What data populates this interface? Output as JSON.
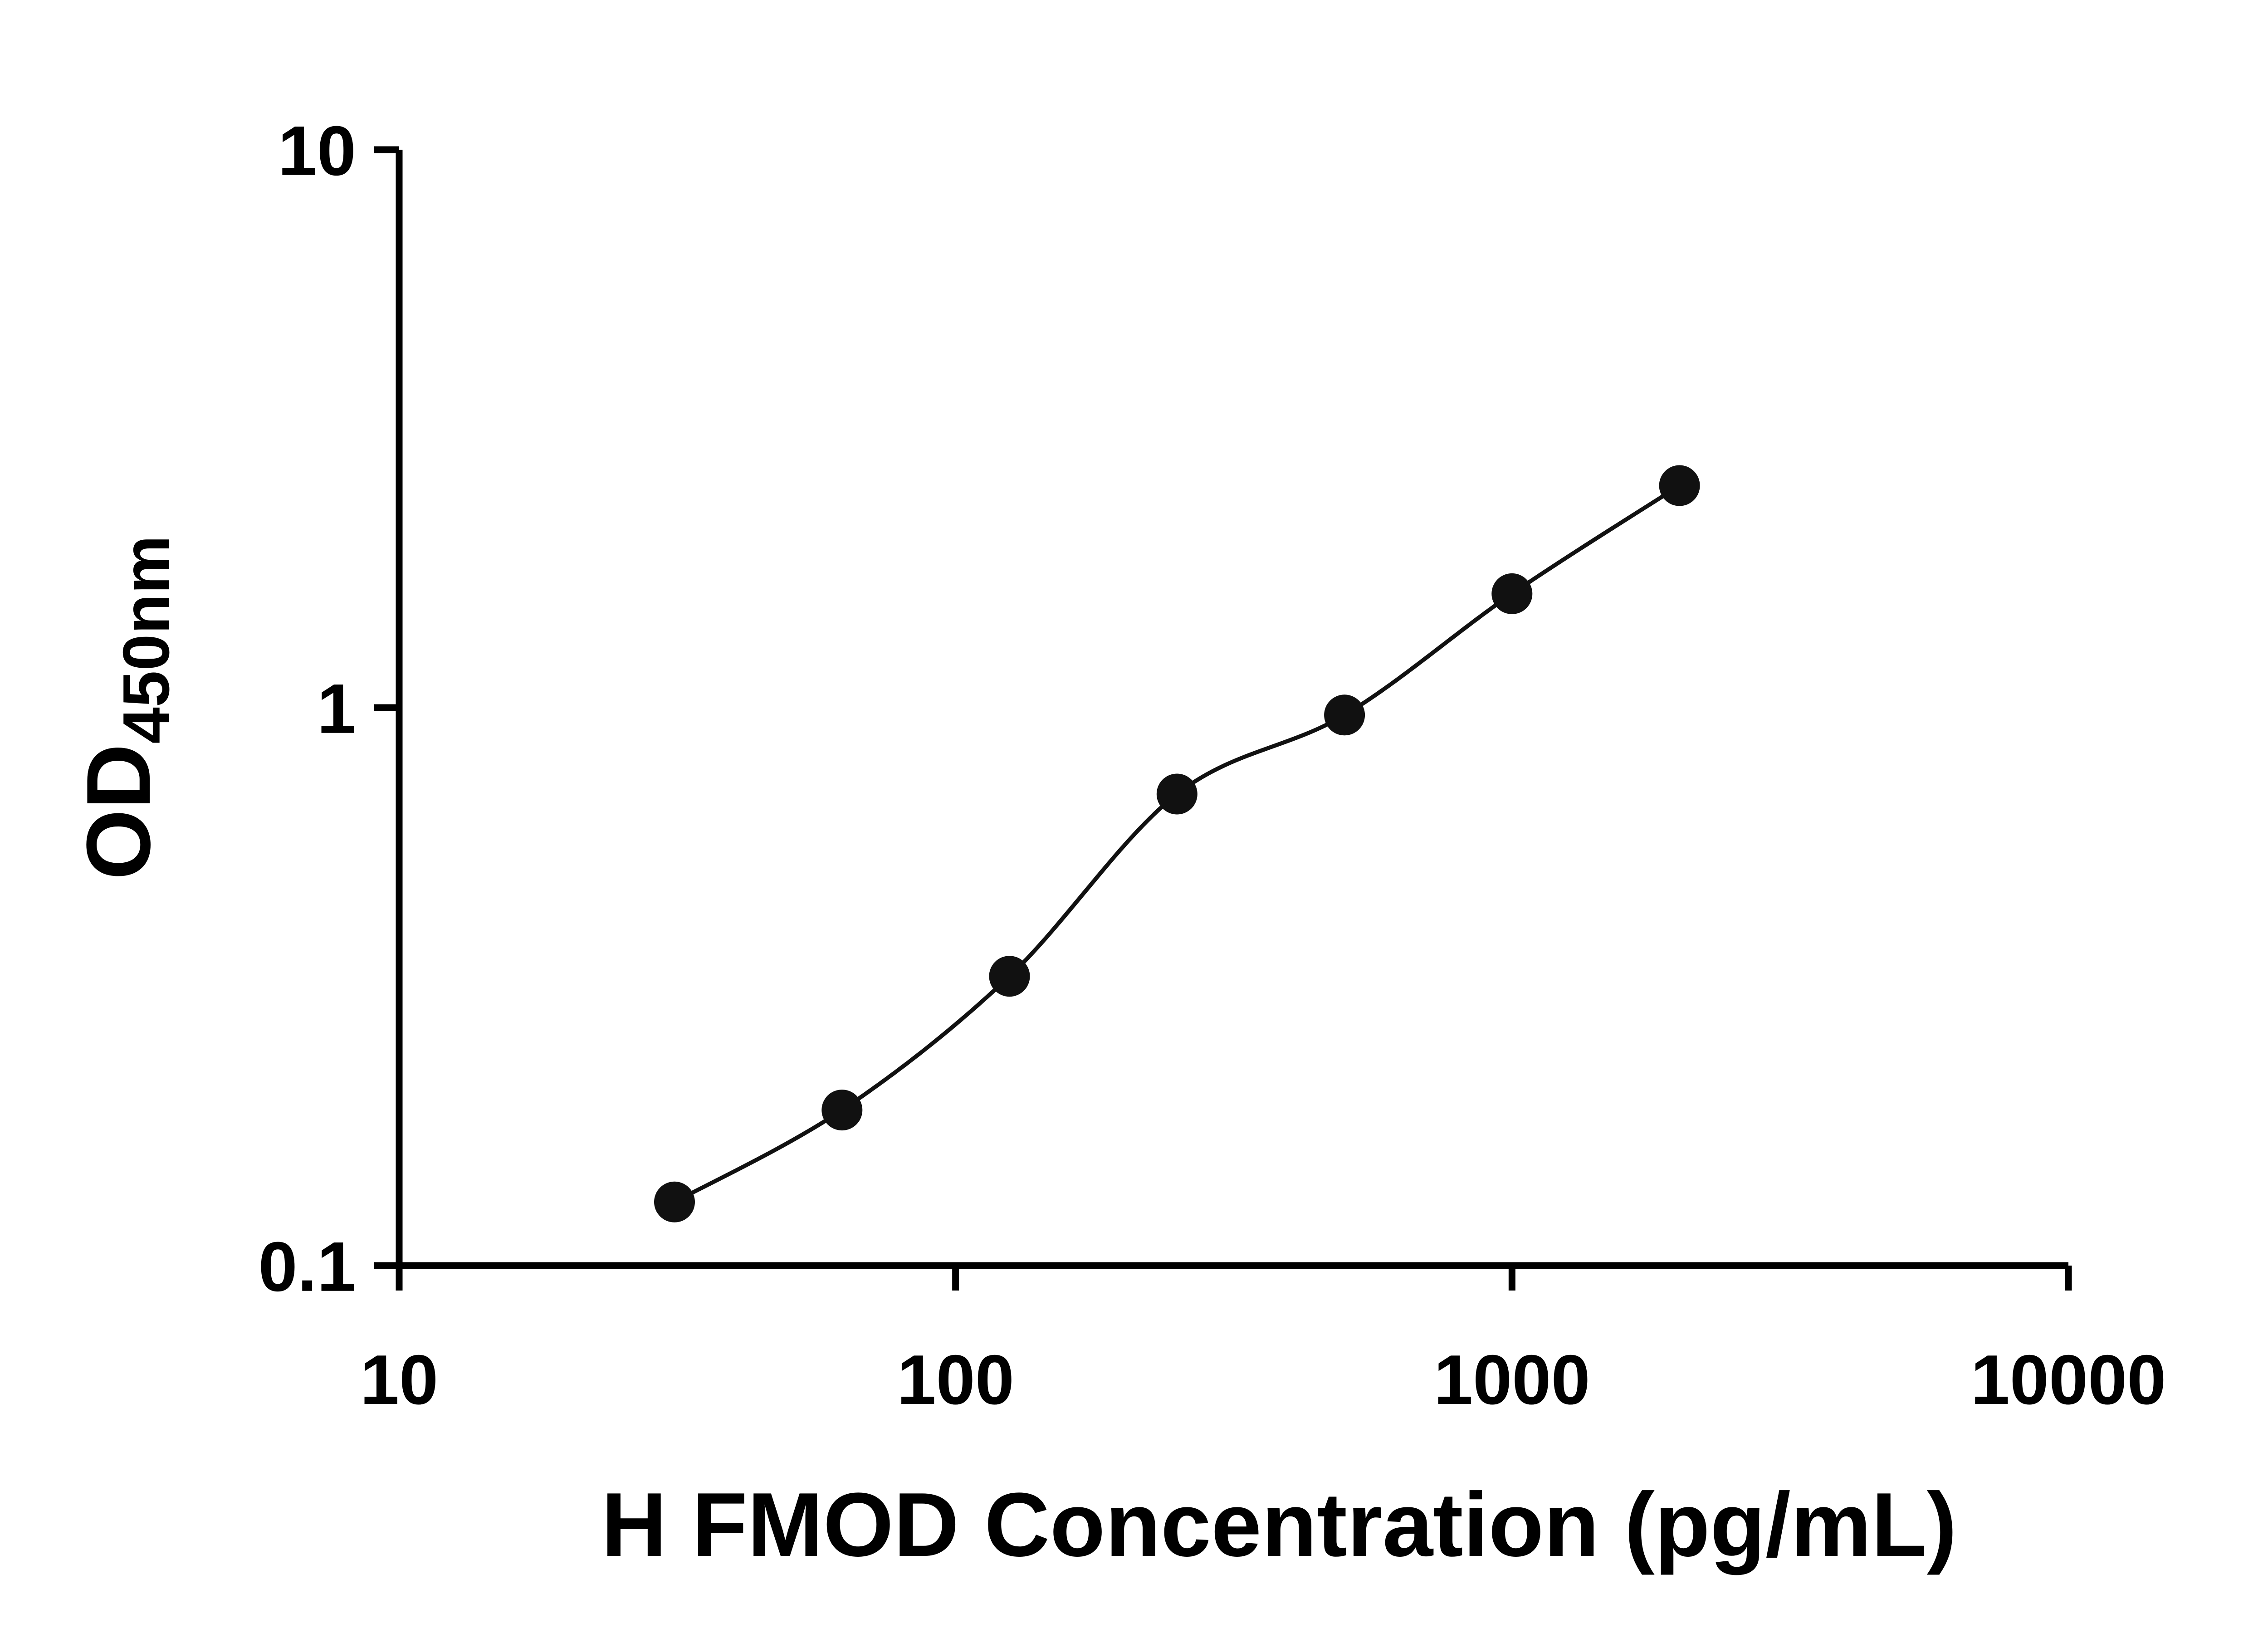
{
  "chart": {
    "x_axis": {
      "title": "H FMOD Concentration (pg/mL)",
      "tick_labels": [
        "10",
        "100",
        "1000",
        "10000"
      ]
    },
    "y_axis": {
      "title_main": "OD",
      "title_sub": "450nm",
      "tick_labels": [
        "0.1",
        "1",
        "10"
      ]
    }
  },
  "chart_data": {
    "type": "scatter",
    "title": "",
    "xlabel": "H FMOD Concentration (pg/mL)",
    "ylabel": "OD450nm",
    "x_scale": "log",
    "y_scale": "log",
    "xlim": [
      10,
      10000
    ],
    "ylim": [
      0.1,
      10
    ],
    "x_ticks": [
      10,
      100,
      1000,
      10000
    ],
    "x_tick_labels": [
      "10",
      "100",
      "1000",
      "10000"
    ],
    "y_ticks": [
      0.1,
      1,
      10
    ],
    "y_tick_labels": [
      "0.1",
      "1",
      "10"
    ],
    "grid": false,
    "legend": "none",
    "marker": "filled-circle",
    "marker_color": "#111111",
    "line_color": "#111111",
    "curve_style": "smooth fit line through points",
    "points": [
      {
        "x": 31.25,
        "y": 0.13
      },
      {
        "x": 62.5,
        "y": 0.19
      },
      {
        "x": 125,
        "y": 0.33
      },
      {
        "x": 250,
        "y": 0.7
      },
      {
        "x": 500,
        "y": 0.97
      },
      {
        "x": 1000,
        "y": 1.6
      },
      {
        "x": 2000,
        "y": 2.5
      }
    ]
  }
}
